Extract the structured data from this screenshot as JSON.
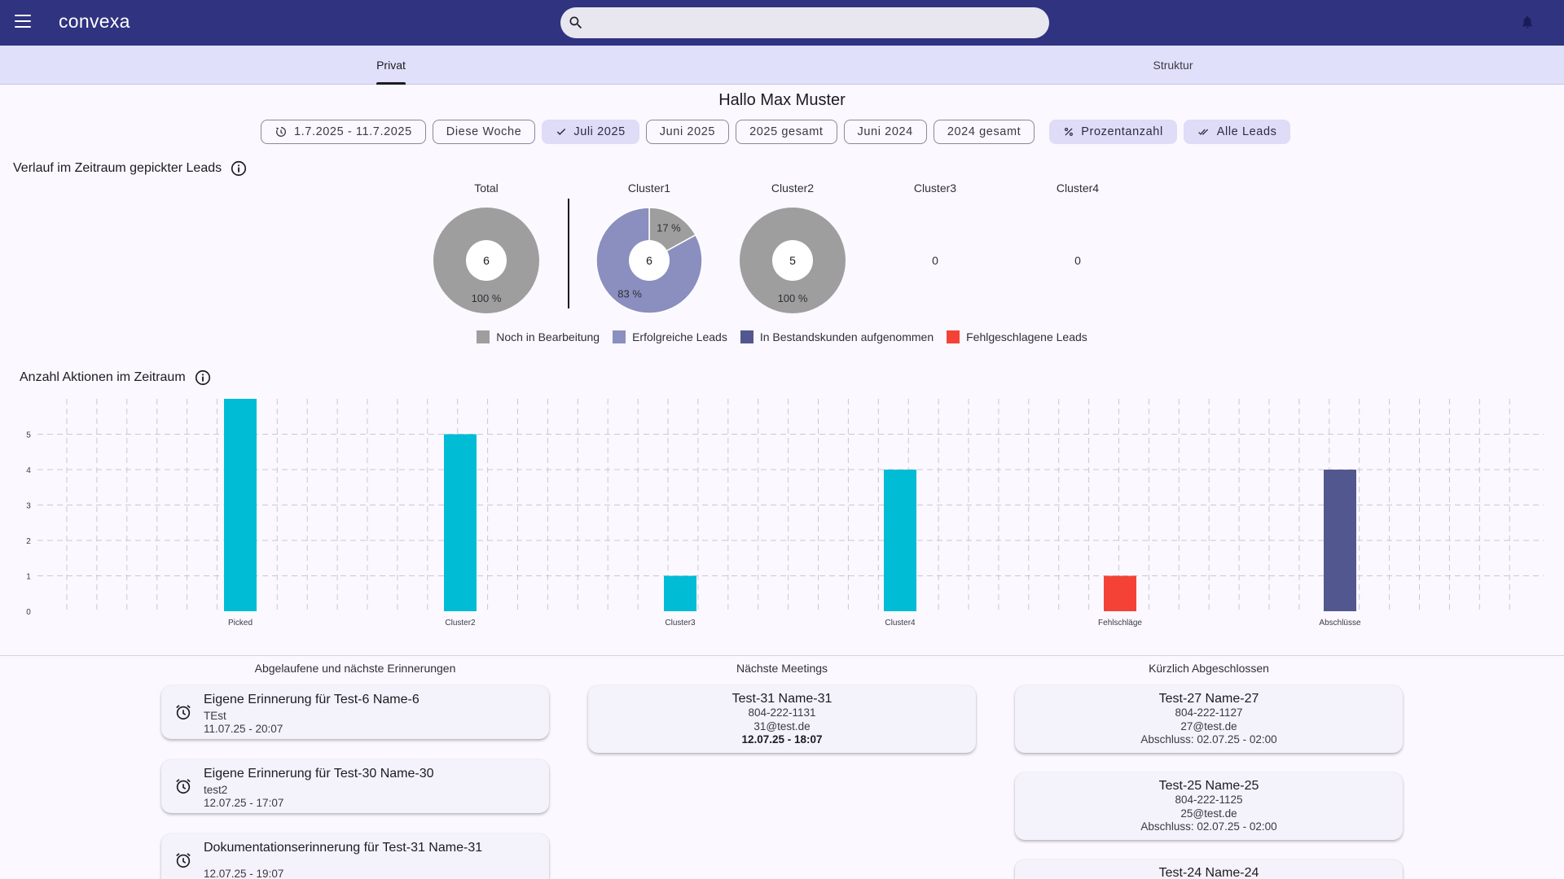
{
  "app": {
    "brand": "convexa",
    "search_placeholder": ""
  },
  "tabs": {
    "privat": "Privat",
    "struktur": "Struktur"
  },
  "greeting": "Hallo Max Muster",
  "filters": {
    "date_range": "1.7.2025 - 11.7.2025",
    "diese_woche": "Diese Woche",
    "juli_2025": "Juli 2025",
    "juni_2025": "Juni 2025",
    "gesamt_2025": "2025 gesamt",
    "juni_2024": "Juni 2024",
    "gesamt_2024": "2024 gesamt",
    "prozent": "Prozentanzahl",
    "alle_leads": "Alle Leads"
  },
  "colors": {
    "noch_in_bearbeitung": "#9e9e9e",
    "erfolgreiche_leads": "#8a8fbf",
    "bestandskunden": "#52588f",
    "fehlgeschlagen": "#f44336",
    "bar_default": "#00bcd4",
    "bar_fail": "#f44336",
    "bar_abschluss": "#52588f",
    "topbar": "#2f3380"
  },
  "leads_section": {
    "title": "Verlauf im Zeitraum gepickter Leads",
    "pies": [
      {
        "label": "Total",
        "center": "6",
        "slices": [
          {
            "cat": "noch",
            "value": 100,
            "label": "100 %"
          }
        ]
      },
      {
        "label": "Cluster1",
        "center": "6",
        "slices": [
          {
            "cat": "noch",
            "value": 17,
            "label": "17 %"
          },
          {
            "cat": "erfolgreich",
            "value": 83,
            "label": "83 %"
          }
        ]
      },
      {
        "label": "Cluster2",
        "center": "5",
        "slices": [
          {
            "cat": "noch",
            "value": 100,
            "label": "100 %"
          }
        ]
      }
    ],
    "zeros": [
      {
        "label": "Cluster3",
        "value": "0"
      },
      {
        "label": "Cluster4",
        "value": "0"
      }
    ],
    "legend": [
      {
        "key": "noch",
        "label": "Noch in Bearbeitung",
        "color": "#9e9e9e"
      },
      {
        "key": "erfolgreich",
        "label": "Erfolgreiche Leads",
        "color": "#8a8fbf"
      },
      {
        "key": "bestand",
        "label": "In Bestandskunden aufgenommen",
        "color": "#52588f"
      },
      {
        "key": "fehl",
        "label": "Fehlgeschlagene Leads",
        "color": "#f44336"
      }
    ]
  },
  "actions_section": {
    "title": "Anzahl Aktionen im Zeitraum"
  },
  "chart_data": {
    "type": "bar",
    "title": "Anzahl Aktionen im Zeitraum",
    "categories": [
      "Picked",
      "Cluster2",
      "Cluster3",
      "Cluster4",
      "Fehlschläge",
      "Abschlüsse"
    ],
    "values": [
      6,
      5,
      1,
      4,
      1,
      4
    ],
    "colors": [
      "#00bcd4",
      "#00bcd4",
      "#00bcd4",
      "#00bcd4",
      "#f44336",
      "#52588f"
    ],
    "yticks": [
      "0",
      "1",
      "2",
      "3",
      "4",
      "5"
    ],
    "ylim": [
      0,
      6
    ],
    "grid": true,
    "xlabel": "",
    "ylabel": ""
  },
  "reminders": {
    "title": "Abgelaufene und nächste Erinnerungen",
    "items": [
      {
        "title": "Eigene Erinnerung für Test-6 Name-6",
        "note": "TEst",
        "time": "11.07.25 - 20:07"
      },
      {
        "title": "Eigene Erinnerung für Test-30 Name-30",
        "note": "test2",
        "time": "12.07.25 - 17:07"
      },
      {
        "title": "Dokumentationserinnerung für Test-31 Name-31",
        "note": "",
        "time": "12.07.25 - 19:07"
      }
    ]
  },
  "meetings": {
    "title": "Nächste Meetings",
    "items": [
      {
        "name": "Test-31 Name-31",
        "phone": "804-222-1131",
        "email": "31@test.de",
        "time": "12.07.25 - 18:07"
      }
    ]
  },
  "closed": {
    "title": "Kürzlich Abgeschlossen",
    "items": [
      {
        "name": "Test-27 Name-27",
        "phone": "804-222-1127",
        "email": "27@test.de",
        "closed": "Abschluss: 02.07.25 - 02:00"
      },
      {
        "name": "Test-25 Name-25",
        "phone": "804-222-1125",
        "email": "25@test.de",
        "closed": "Abschluss: 02.07.25 - 02:00"
      },
      {
        "name": "Test-24 Name-24"
      }
    ]
  }
}
